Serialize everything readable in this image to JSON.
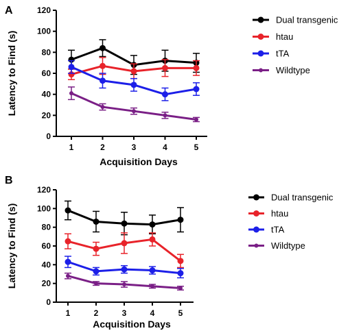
{
  "chart_data": [
    {
      "panel": "A",
      "type": "line",
      "xlabel": "Acquisition Days",
      "ylabel": "Latency to Find (s)",
      "x": [
        1,
        2,
        3,
        4,
        5
      ],
      "xticks": [
        "1",
        "2",
        "3",
        "4",
        "5"
      ],
      "ylim": [
        0,
        120
      ],
      "yticks": [
        0,
        20,
        40,
        60,
        80,
        100,
        120
      ],
      "grid": false,
      "legend_position": "right",
      "series": [
        {
          "name": "Dual transgenic",
          "color": "#000000",
          "values": [
            73,
            84,
            68,
            72,
            70
          ],
          "error": [
            9,
            8,
            9,
            10,
            9
          ]
        },
        {
          "name": "htau",
          "color": "#e8232a",
          "values": [
            59,
            67,
            62,
            65,
            65
          ],
          "error": [
            5,
            8,
            7,
            8,
            7
          ]
        },
        {
          "name": "tTA",
          "color": "#1c1fe8",
          "values": [
            66,
            53,
            49,
            40,
            45
          ],
          "error": [
            6,
            7,
            6,
            6,
            6
          ]
        },
        {
          "name": "Wildtype",
          "color": "#7a1f86",
          "values": [
            41,
            28,
            24,
            20,
            16
          ],
          "error": [
            6,
            3,
            3,
            3,
            2
          ]
        }
      ]
    },
    {
      "panel": "B",
      "type": "line",
      "xlabel": "Acquisition Days",
      "ylabel": "Latency to Find (s)",
      "x": [
        1,
        2,
        3,
        4,
        5
      ],
      "xticks": [
        "1",
        "2",
        "3",
        "4",
        "5"
      ],
      "ylim": [
        0,
        120
      ],
      "yticks": [
        0,
        20,
        40,
        60,
        80,
        100,
        120
      ],
      "grid": false,
      "legend_position": "right",
      "series": [
        {
          "name": "Dual transgenic",
          "color": "#000000",
          "values": [
            98,
            86,
            84,
            83,
            88
          ],
          "error": [
            10,
            11,
            12,
            10,
            13
          ]
        },
        {
          "name": "htau",
          "color": "#e8232a",
          "values": [
            65,
            57,
            63,
            67,
            44
          ],
          "error": [
            8,
            7,
            11,
            7,
            7
          ]
        },
        {
          "name": "tTA",
          "color": "#1c1fe8",
          "values": [
            43,
            33,
            35,
            34,
            31
          ],
          "error": [
            6,
            4,
            4,
            4,
            5
          ]
        },
        {
          "name": "Wildtype",
          "color": "#7a1f86",
          "values": [
            28,
            20,
            19,
            17,
            15
          ],
          "error": [
            3,
            2,
            3,
            2,
            2
          ]
        }
      ]
    }
  ]
}
